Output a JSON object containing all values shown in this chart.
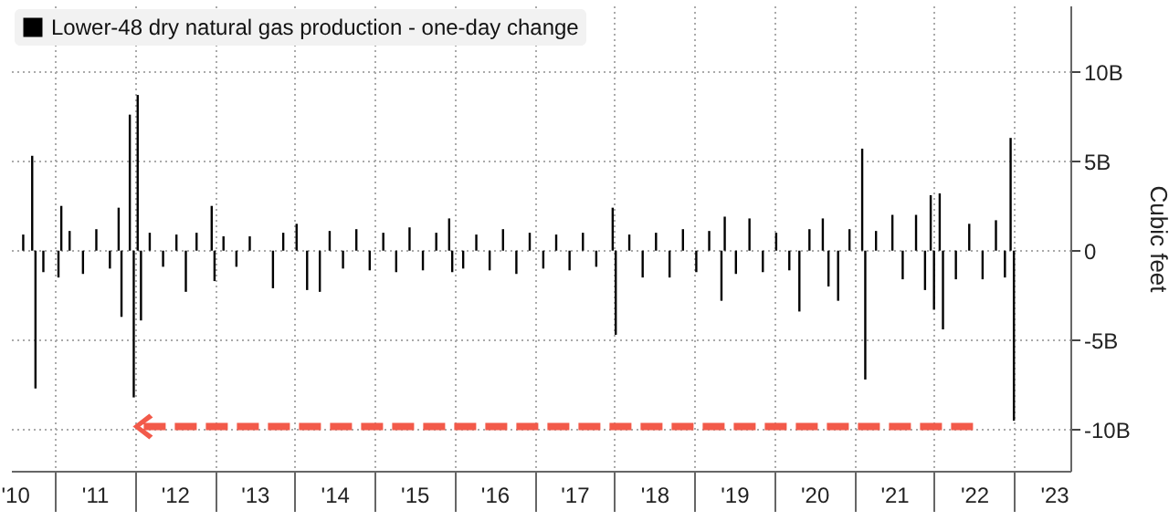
{
  "chart_data": {
    "type": "bar",
    "ylabel": "Cubic feet",
    "x": [
      "2010-08-10",
      "2010-09-20",
      "2010-10-05",
      "2010-11-10",
      "2011-01-18",
      "2011-01-31",
      "2011-03-10",
      "2011-05-10",
      "2011-07-10",
      "2011-09-10",
      "2011-10-20",
      "2011-11-02",
      "2011-12-10",
      "2011-12-28",
      "2012-01-15",
      "2012-01-30",
      "2012-03-10",
      "2012-05-10",
      "2012-07-10",
      "2012-08-22",
      "2012-10-10",
      "2012-12-18",
      "2012-12-31",
      "2013-02-10",
      "2013-04-10",
      "2013-06-10",
      "2013-09-24",
      "2013-11-10",
      "2014-01-10",
      "2014-02-27",
      "2014-04-26",
      "2014-06-10",
      "2014-08-10",
      "2014-10-10",
      "2014-12-10",
      "2015-02-10",
      "2015-04-10",
      "2015-06-10",
      "2015-08-10",
      "2015-10-10",
      "2015-12-08",
      "2015-12-22",
      "2016-02-10",
      "2016-04-10",
      "2016-06-10",
      "2016-08-10",
      "2016-10-10",
      "2016-12-10",
      "2017-02-10",
      "2017-04-10",
      "2017-06-10",
      "2017-08-10",
      "2017-10-10",
      "2017-12-24",
      "2018-01-07",
      "2018-03-10",
      "2018-05-10",
      "2018-07-10",
      "2018-09-10",
      "2018-11-10",
      "2019-01-10",
      "2019-03-10",
      "2019-05-05",
      "2019-05-20",
      "2019-07-10",
      "2019-09-10",
      "2019-11-10",
      "2020-01-10",
      "2020-03-10",
      "2020-04-25",
      "2020-06-10",
      "2020-08-10",
      "2020-09-05",
      "2020-10-19",
      "2020-12-10",
      "2021-02-06",
      "2021-02-20",
      "2021-04-10",
      "2021-06-24",
      "2021-08-10",
      "2021-10-10",
      "2021-11-20",
      "2021-12-16",
      "2021-12-31",
      "2022-01-26",
      "2022-02-10",
      "2022-04-10",
      "2022-06-10",
      "2022-08-10",
      "2022-10-10",
      "2022-11-20",
      "2022-12-16",
      "2022-12-31"
    ],
    "series": [
      {
        "name": "Lower-48 dry natural gas production - one-day change",
        "color": "#000000",
        "values": [
          0.9,
          5.3,
          -7.7,
          -1.2,
          -1.5,
          2.5,
          1.1,
          -1.3,
          1.2,
          -1.0,
          2.4,
          -3.7,
          7.6,
          -8.2,
          8.7,
          -3.9,
          1.0,
          -0.9,
          0.9,
          -2.3,
          1.0,
          2.5,
          -1.7,
          0.8,
          -0.9,
          0.8,
          -2.1,
          1.0,
          1.5,
          -2.2,
          -2.3,
          1.1,
          -1.0,
          1.2,
          -1.1,
          1.0,
          -1.2,
          1.3,
          -1.1,
          1.0,
          1.8,
          -1.2,
          -1.0,
          0.9,
          -1.1,
          1.2,
          -1.3,
          1.0,
          -1.0,
          0.9,
          -1.1,
          1.0,
          -0.9,
          2.4,
          -4.7,
          0.9,
          -1.5,
          1.0,
          -1.5,
          1.2,
          -1.2,
          1.1,
          -2.8,
          1.9,
          -1.3,
          1.8,
          -1.2,
          1.0,
          -1.1,
          -3.4,
          1.2,
          1.8,
          -2.0,
          -2.8,
          1.2,
          5.7,
          -7.2,
          1.1,
          2.0,
          -1.6,
          2.0,
          -2.2,
          3.1,
          -3.3,
          3.2,
          -4.4,
          -1.6,
          1.5,
          -1.6,
          1.7,
          -1.5,
          6.3,
          -9.5
        ]
      }
    ],
    "xlim": [
      "2010-06-15",
      "2023-09-15"
    ],
    "xticks": [
      {
        "value": "2010-07-02",
        "label": "'10"
      },
      {
        "value": "2011-01-01",
        "label": null
      },
      {
        "value": "2011-07-02",
        "label": "'11"
      },
      {
        "value": "2012-01-01",
        "label": null
      },
      {
        "value": "2012-07-02",
        "label": "'12"
      },
      {
        "value": "2013-01-01",
        "label": null
      },
      {
        "value": "2013-07-02",
        "label": "'13"
      },
      {
        "value": "2014-01-01",
        "label": null
      },
      {
        "value": "2014-07-02",
        "label": "'14"
      },
      {
        "value": "2015-01-01",
        "label": null
      },
      {
        "value": "2015-07-02",
        "label": "'15"
      },
      {
        "value": "2016-01-01",
        "label": null
      },
      {
        "value": "2016-07-02",
        "label": "'16"
      },
      {
        "value": "2017-01-01",
        "label": null
      },
      {
        "value": "2017-07-02",
        "label": "'17"
      },
      {
        "value": "2018-01-01",
        "label": null
      },
      {
        "value": "2018-07-02",
        "label": "'18"
      },
      {
        "value": "2019-01-01",
        "label": null
      },
      {
        "value": "2019-07-02",
        "label": "'19"
      },
      {
        "value": "2020-01-01",
        "label": null
      },
      {
        "value": "2020-07-02",
        "label": "'20"
      },
      {
        "value": "2021-01-01",
        "label": null
      },
      {
        "value": "2021-07-02",
        "label": "'21"
      },
      {
        "value": "2022-01-01",
        "label": null
      },
      {
        "value": "2022-07-02",
        "label": "'22"
      },
      {
        "value": "2023-01-01",
        "label": null
      },
      {
        "value": "2023-07-02",
        "label": "'23"
      }
    ],
    "ylim": [
      -12.3,
      13.7
    ],
    "yticks": [
      {
        "value": -10,
        "label": "-10B"
      },
      {
        "value": -5,
        "label": "-5B"
      },
      {
        "value": 0,
        "label": "0"
      },
      {
        "value": 5,
        "label": "5B"
      },
      {
        "value": 10,
        "label": "10B"
      }
    ],
    "grid": true,
    "legend": "top left"
  }
}
